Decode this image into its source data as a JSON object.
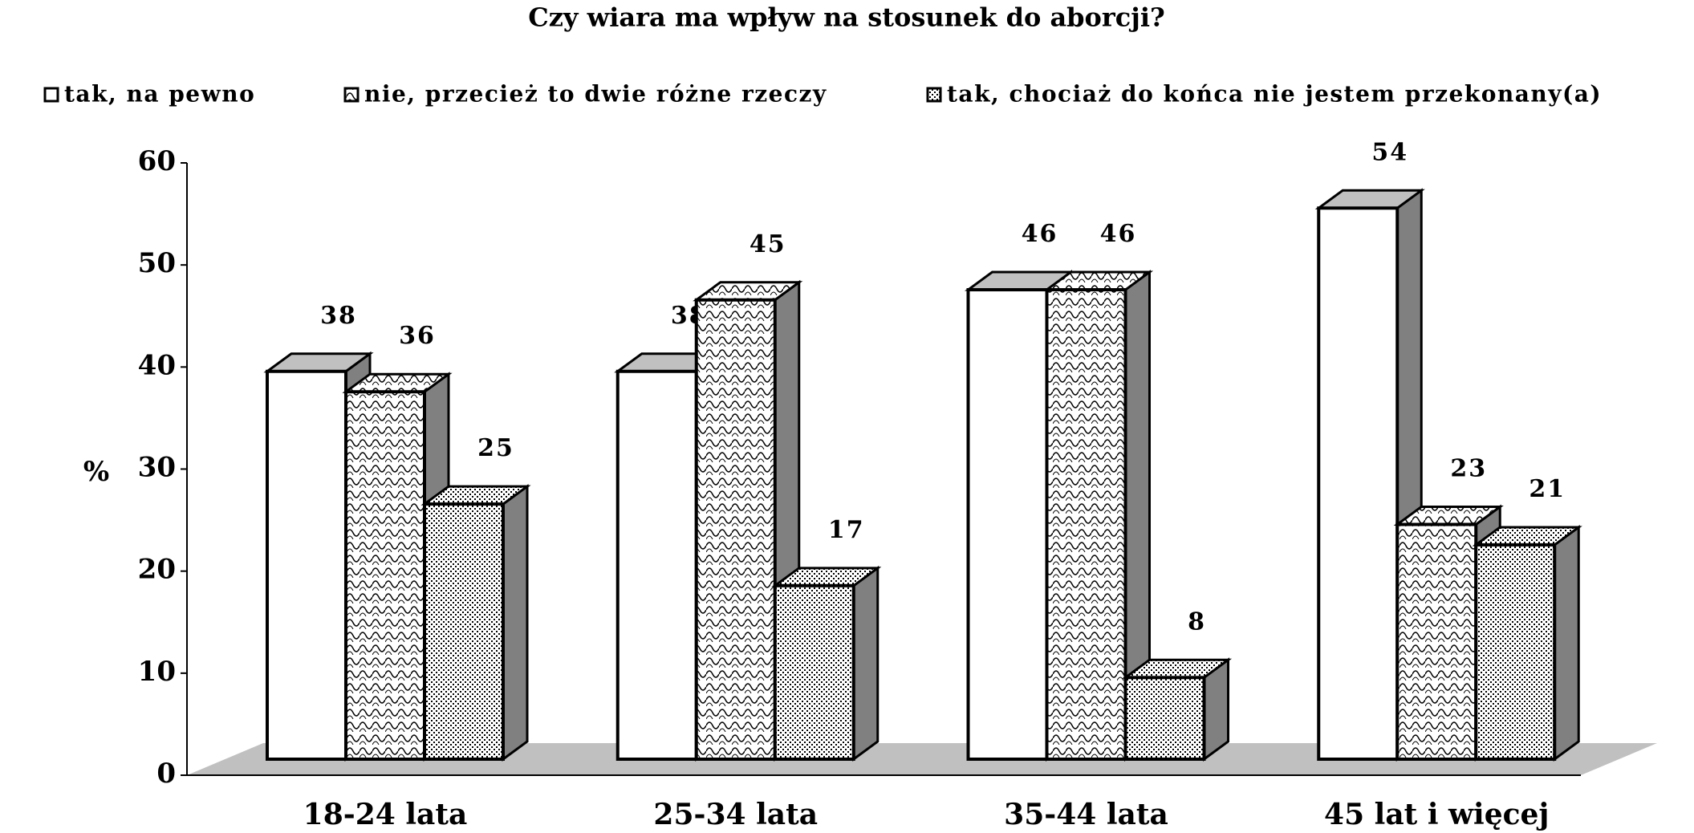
{
  "chart_data": {
    "type": "bar3d",
    "title": "Czy wiara ma wpływ na stosunek do aborcji?",
    "categories": [
      "18-24 lata",
      "25-34 lata",
      "35-44 lata",
      "45 lat i więcej"
    ],
    "series": [
      {
        "name": "tak, na pewno",
        "color": "#ffffff",
        "values": [
          38,
          38,
          46,
          54
        ]
      },
      {
        "name": "nie, przecież to dwie różne rzeczy",
        "color": "#ffffff",
        "values": [
          36,
          45,
          46,
          23
        ]
      },
      {
        "name": "tak, chociaż do końca nie jestem przekonany(a)",
        "color": "#ffffff",
        "values": [
          25,
          17,
          8,
          21
        ]
      }
    ],
    "y_label": "%",
    "ylim": [
      0,
      60
    ],
    "yticks": [
      0,
      10,
      20,
      30,
      40,
      50,
      60
    ],
    "legend": "top"
  }
}
